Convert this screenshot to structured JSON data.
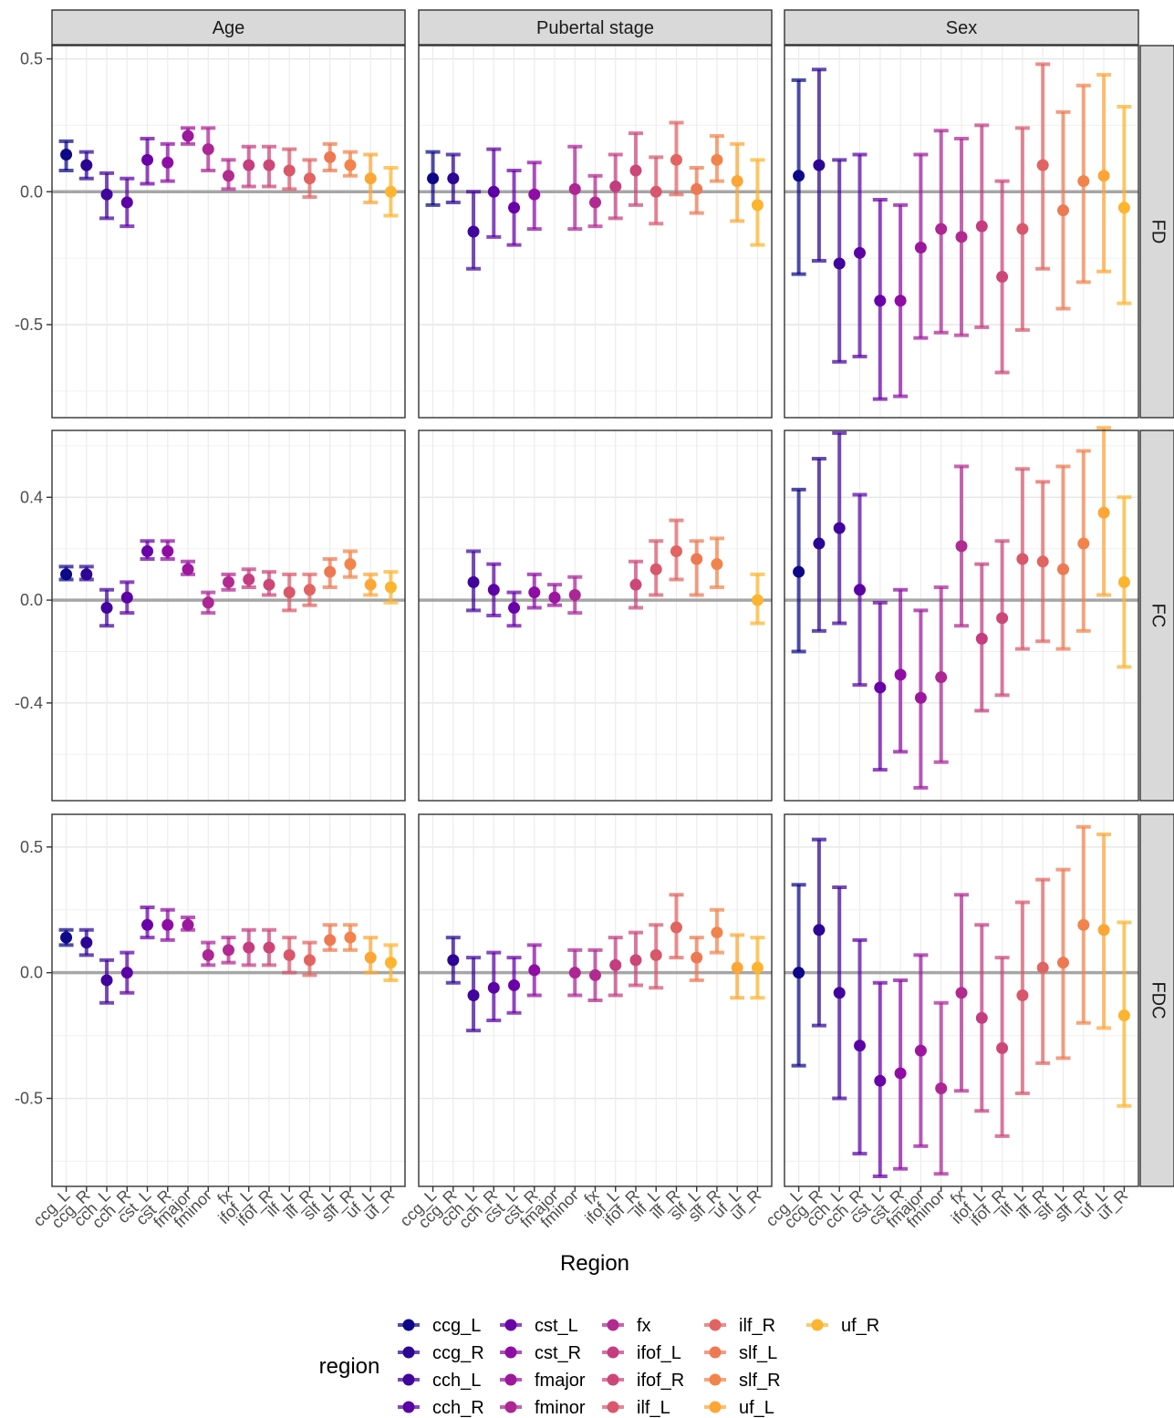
{
  "chart_data": {
    "type": "scatter",
    "subtype": "point-errorbar-facet-grid",
    "xlabel": "Region",
    "legend": {
      "title": "region",
      "position": "bottom"
    },
    "grid": true,
    "categories": [
      "ccg_L",
      "ccg_R",
      "cch_L",
      "cch_R",
      "cst_L",
      "cst_R",
      "fmajor",
      "fminor",
      "fx",
      "ifof_L",
      "ifof_R",
      "ilf_L",
      "ilf_R",
      "slf_L",
      "slf_R",
      "uf_L",
      "uf_R"
    ],
    "colors": [
      "#0d0887",
      "#2c0594",
      "#41049d",
      "#5c01a6",
      "#6a00a8",
      "#8f0da4",
      "#9c179e",
      "#ac2694",
      "#b12a90",
      "#c33d80",
      "#cc4778",
      "#d8576b",
      "#e16462",
      "#ed7953",
      "#f2844b",
      "#fca636",
      "#fdb42f"
    ],
    "col_facets": [
      "Age",
      "Pubertal stage",
      "Sex"
    ],
    "row_facets": [
      {
        "label": "FD",
        "ylim": [
          -0.85,
          0.55
        ],
        "ticks": [
          -0.5,
          0.0,
          0.5
        ],
        "tick_labels": [
          "-0.5",
          "0.0",
          "0.5"
        ]
      },
      {
        "label": "FC",
        "ylim": [
          -0.78,
          0.66
        ],
        "ticks": [
          -0.4,
          0.0,
          0.4
        ],
        "tick_labels": [
          "-0.4",
          "0.0",
          "0.4"
        ]
      },
      {
        "label": "FDC",
        "ylim": [
          -0.85,
          0.63
        ],
        "ticks": [
          -0.5,
          0.0,
          0.5
        ],
        "tick_labels": [
          "-0.5",
          "0.0",
          "0.5"
        ]
      }
    ],
    "panels": [
      {
        "row": "FD",
        "col": "Age",
        "estimate": [
          0.14,
          0.1,
          -0.01,
          -0.04,
          0.12,
          0.11,
          0.21,
          0.16,
          0.06,
          0.1,
          0.1,
          0.08,
          0.05,
          0.13,
          0.1,
          0.05,
          0.0
        ],
        "lower": [
          0.08,
          0.05,
          -0.1,
          -0.13,
          0.03,
          0.04,
          0.18,
          0.08,
          0.01,
          0.02,
          0.02,
          0.01,
          -0.02,
          0.08,
          0.06,
          -0.04,
          -0.09
        ],
        "upper": [
          0.19,
          0.15,
          0.07,
          0.05,
          0.2,
          0.18,
          0.24,
          0.24,
          0.12,
          0.17,
          0.17,
          0.16,
          0.12,
          0.18,
          0.15,
          0.14,
          0.09
        ]
      },
      {
        "row": "FD",
        "col": "Pubertal stage",
        "estimate": [
          0.05,
          0.05,
          -0.15,
          0.0,
          -0.06,
          -0.01,
          null,
          0.01,
          -0.04,
          0.02,
          0.08,
          0.0,
          0.12,
          0.01,
          0.12,
          0.04,
          -0.05
        ],
        "lower": [
          -0.05,
          -0.04,
          -0.29,
          -0.17,
          -0.2,
          -0.14,
          null,
          -0.14,
          -0.13,
          -0.1,
          -0.05,
          -0.12,
          -0.01,
          -0.08,
          0.04,
          -0.11,
          -0.2
        ],
        "upper": [
          0.15,
          0.14,
          0.0,
          0.16,
          0.08,
          0.11,
          null,
          0.17,
          0.06,
          0.14,
          0.22,
          0.13,
          0.26,
          0.09,
          0.21,
          0.18,
          0.12
        ]
      },
      {
        "row": "FD",
        "col": "Sex",
        "estimate": [
          0.06,
          0.1,
          -0.27,
          -0.23,
          -0.41,
          -0.41,
          -0.21,
          -0.14,
          -0.17,
          -0.13,
          -0.32,
          -0.14,
          0.1,
          -0.07,
          0.04,
          0.06,
          -0.06
        ],
        "lower": [
          -0.31,
          -0.26,
          -0.64,
          -0.62,
          -0.78,
          -0.77,
          -0.55,
          -0.53,
          -0.54,
          -0.51,
          -0.68,
          -0.52,
          -0.29,
          -0.44,
          -0.34,
          -0.3,
          -0.42
        ],
        "upper": [
          0.42,
          0.46,
          0.12,
          0.14,
          -0.03,
          -0.05,
          0.14,
          0.23,
          0.2,
          0.25,
          0.04,
          0.24,
          0.48,
          0.3,
          0.4,
          0.44,
          0.32
        ]
      },
      {
        "row": "FC",
        "col": "Age",
        "estimate": [
          0.1,
          0.1,
          -0.03,
          0.01,
          0.19,
          0.19,
          0.12,
          -0.01,
          0.07,
          0.08,
          0.06,
          0.03,
          0.04,
          0.11,
          0.14,
          0.06,
          0.05
        ],
        "lower": [
          0.08,
          0.08,
          -0.1,
          -0.05,
          0.16,
          0.16,
          0.1,
          -0.05,
          0.04,
          0.05,
          0.02,
          -0.04,
          -0.02,
          0.05,
          0.09,
          0.02,
          -0.01
        ],
        "upper": [
          0.13,
          0.13,
          0.04,
          0.07,
          0.23,
          0.23,
          0.15,
          0.03,
          0.1,
          0.12,
          0.11,
          0.1,
          0.1,
          0.16,
          0.19,
          0.1,
          0.11
        ]
      },
      {
        "row": "FC",
        "col": "Pubertal stage",
        "estimate": [
          null,
          null,
          0.07,
          0.04,
          -0.03,
          0.03,
          0.01,
          0.02,
          null,
          null,
          0.06,
          0.12,
          0.19,
          0.16,
          0.14,
          null,
          0.0
        ],
        "lower": [
          null,
          null,
          -0.04,
          -0.06,
          -0.1,
          -0.03,
          -0.02,
          -0.05,
          null,
          null,
          -0.03,
          0.02,
          0.08,
          0.02,
          0.05,
          null,
          -0.09
        ],
        "upper": [
          null,
          null,
          0.19,
          0.14,
          0.03,
          0.1,
          0.06,
          0.09,
          null,
          null,
          0.15,
          0.23,
          0.31,
          0.23,
          0.24,
          null,
          0.1
        ]
      },
      {
        "row": "FC",
        "col": "Sex",
        "estimate": [
          0.11,
          0.22,
          0.28,
          0.04,
          -0.34,
          -0.29,
          -0.38,
          -0.3,
          0.21,
          -0.15,
          -0.07,
          0.16,
          0.15,
          0.12,
          0.22,
          0.34,
          0.07
        ],
        "lower": [
          -0.2,
          -0.12,
          -0.09,
          -0.33,
          -0.66,
          -0.59,
          -0.73,
          -0.63,
          -0.1,
          -0.43,
          -0.37,
          -0.19,
          -0.16,
          -0.19,
          -0.12,
          0.02,
          -0.26
        ],
        "upper": [
          0.43,
          0.55,
          0.65,
          0.41,
          -0.01,
          0.04,
          -0.04,
          0.05,
          0.52,
          0.14,
          0.23,
          0.51,
          0.46,
          0.52,
          0.58,
          0.67,
          0.4
        ]
      },
      {
        "row": "FDC",
        "col": "Age",
        "estimate": [
          0.14,
          0.12,
          -0.03,
          0.0,
          0.19,
          0.19,
          0.19,
          0.07,
          0.09,
          0.1,
          0.1,
          0.07,
          0.05,
          0.13,
          0.14,
          0.06,
          0.04
        ],
        "lower": [
          0.11,
          0.07,
          -0.12,
          -0.08,
          0.14,
          0.13,
          0.17,
          0.03,
          0.04,
          0.03,
          0.03,
          0.0,
          -0.01,
          0.09,
          0.09,
          0.0,
          -0.03
        ],
        "upper": [
          0.17,
          0.17,
          0.05,
          0.08,
          0.26,
          0.25,
          0.22,
          0.12,
          0.14,
          0.17,
          0.17,
          0.14,
          0.12,
          0.19,
          0.19,
          0.14,
          0.11
        ]
      },
      {
        "row": "FDC",
        "col": "Pubertal stage",
        "estimate": [
          null,
          0.05,
          -0.09,
          -0.06,
          -0.05,
          0.01,
          null,
          0.0,
          -0.01,
          0.03,
          0.05,
          0.07,
          0.18,
          0.06,
          0.16,
          0.02,
          0.02
        ],
        "lower": [
          null,
          -0.04,
          -0.23,
          -0.19,
          -0.16,
          -0.09,
          null,
          -0.09,
          -0.11,
          -0.09,
          -0.05,
          -0.06,
          0.06,
          -0.03,
          0.08,
          -0.1,
          -0.1
        ],
        "upper": [
          null,
          0.14,
          0.06,
          0.08,
          0.06,
          0.11,
          null,
          0.09,
          0.09,
          0.14,
          0.16,
          0.19,
          0.31,
          0.14,
          0.25,
          0.15,
          0.14
        ]
      },
      {
        "row": "FDC",
        "col": "Sex",
        "estimate": [
          0.0,
          0.17,
          -0.08,
          -0.29,
          -0.43,
          -0.4,
          -0.31,
          -0.46,
          -0.08,
          -0.18,
          -0.3,
          -0.09,
          0.02,
          0.04,
          0.19,
          0.17,
          -0.17
        ],
        "lower": [
          -0.37,
          -0.21,
          -0.5,
          -0.72,
          -0.81,
          -0.78,
          -0.69,
          -0.8,
          -0.47,
          -0.55,
          -0.65,
          -0.48,
          -0.36,
          -0.34,
          -0.2,
          -0.22,
          -0.53
        ],
        "upper": [
          0.35,
          0.53,
          0.34,
          0.13,
          -0.04,
          -0.03,
          0.07,
          -0.12,
          0.31,
          0.19,
          0.06,
          0.28,
          0.37,
          0.41,
          0.58,
          0.55,
          0.2
        ]
      }
    ]
  }
}
